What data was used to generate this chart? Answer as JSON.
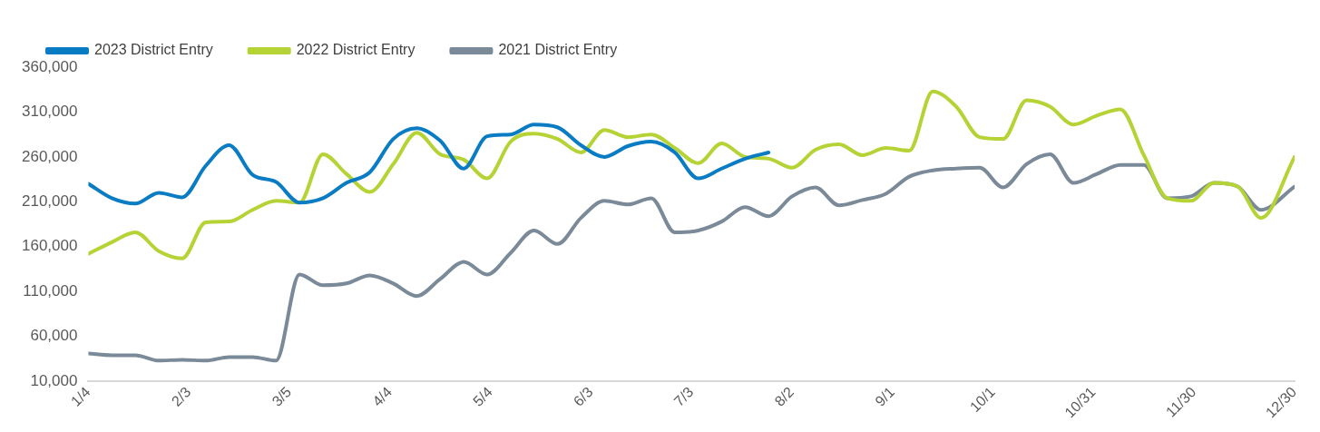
{
  "chart_data": {
    "type": "line",
    "legend": "top left",
    "marker": "none",
    "line_style": "solid",
    "x": [
      "--01-04",
      "--01-11",
      "--01-18",
      "--01-25",
      "--02-01",
      "--02-08",
      "--02-15",
      "--02-22",
      "--03-01",
      "--03-08",
      "--03-15",
      "--03-22",
      "--03-29",
      "--04-05",
      "--04-12",
      "--04-19",
      "--04-26",
      "--05-03",
      "--05-10",
      "--05-17",
      "--05-24",
      "--05-31",
      "--06-07",
      "--06-14",
      "--06-21",
      "--06-28",
      "--07-05",
      "--07-12",
      "--07-19",
      "--07-26",
      "--08-02",
      "--08-09",
      "--08-16",
      "--08-23",
      "--08-30",
      "--09-06",
      "--09-13",
      "--09-20",
      "--09-27",
      "--10-04",
      "--10-11",
      "--10-18",
      "--10-25",
      "--11-01",
      "--11-08",
      "--11-15",
      "--11-22",
      "--11-29",
      "--12-06",
      "--12-13",
      "--12-20",
      "--12-30"
    ],
    "xlim": [
      "--01-04",
      "--12-30"
    ],
    "xticks": [
      {
        "value": "--01-04",
        "label": "1/4"
      },
      {
        "value": "--02-03",
        "label": "2/3"
      },
      {
        "value": "--03-05",
        "label": "3/5"
      },
      {
        "value": "--04-04",
        "label": "4/4"
      },
      {
        "value": "--05-04",
        "label": "5/4"
      },
      {
        "value": "--06-03",
        "label": "6/3"
      },
      {
        "value": "--07-03",
        "label": "7/3"
      },
      {
        "value": "--08-02",
        "label": "8/2"
      },
      {
        "value": "--09-01",
        "label": "9/1"
      },
      {
        "value": "--10-01",
        "label": "10/1"
      },
      {
        "value": "--10-31",
        "label": "10/31"
      },
      {
        "value": "--11-30",
        "label": "11/30"
      },
      {
        "value": "--12-30",
        "label": "12/30"
      }
    ],
    "ylim": [
      10000,
      360000
    ],
    "yticks": [
      {
        "value": 10000,
        "label": "10,000"
      },
      {
        "value": 60000,
        "label": "60,000"
      },
      {
        "value": 110000,
        "label": "110,000"
      },
      {
        "value": 160000,
        "label": "160,000"
      },
      {
        "value": 210000,
        "label": "210,000"
      },
      {
        "value": 260000,
        "label": "260,000"
      },
      {
        "value": 310000,
        "label": "310,000"
      },
      {
        "value": 360000,
        "label": "360,000"
      }
    ],
    "series": [
      {
        "name": "2023 District Entry",
        "color": "#0a7cc4",
        "values": [
          230000,
          214000,
          208000,
          220000,
          215000,
          250000,
          273000,
          240000,
          232000,
          209000,
          214000,
          231000,
          243000,
          280000,
          292000,
          278000,
          247000,
          283000,
          285000,
          296000,
          293000,
          273000,
          260000,
          272000,
          277000,
          265000,
          236000,
          247000,
          258000,
          265000,
          null,
          null,
          null,
          null,
          null,
          null,
          null,
          null,
          null,
          null,
          null,
          null,
          null,
          null,
          null,
          null,
          null,
          null,
          null,
          null,
          null,
          null
        ]
      },
      {
        "name": "2022 District Entry",
        "color": "#b5d334",
        "values": [
          152000,
          165000,
          176000,
          155000,
          147000,
          187000,
          188000,
          201000,
          211000,
          209000,
          263000,
          241000,
          221000,
          252000,
          287000,
          263000,
          257000,
          236000,
          277000,
          286000,
          280000,
          265000,
          290000,
          282000,
          285000,
          270000,
          253000,
          275000,
          260000,
          258000,
          248000,
          268000,
          274000,
          262000,
          270000,
          267000,
          333000,
          316000,
          282000,
          280000,
          323000,
          316000,
          296000,
          306000,
          313000,
          262000,
          214000,
          211000,
          231000,
          227000,
          192000,
          260000
        ]
      },
      {
        "name": "2021 District Entry",
        "color": "#7a8a99",
        "values": [
          41000,
          39000,
          39000,
          33000,
          34000,
          33000,
          37000,
          37000,
          33000,
          129000,
          117000,
          119000,
          128000,
          119000,
          105000,
          124000,
          143000,
          129000,
          153000,
          178000,
          163000,
          192000,
          211000,
          207000,
          214000,
          176000,
          178000,
          188000,
          204000,
          194000,
          216000,
          226000,
          206000,
          212000,
          219000,
          238000,
          245000,
          247000,
          248000,
          226000,
          252000,
          263000,
          231000,
          241000,
          251000,
          251000,
          214000,
          216000,
          231000,
          227000,
          201000,
          227000
        ]
      }
    ]
  }
}
